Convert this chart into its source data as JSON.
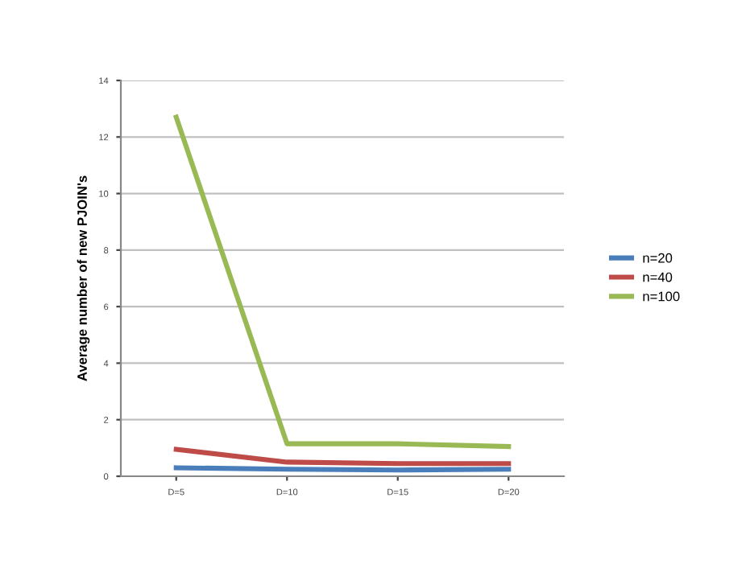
{
  "chart_data": {
    "type": "line",
    "ylabel": "Average number of new PJOIN's",
    "categories": [
      "D=5",
      "D=10",
      "D=15",
      "D=20"
    ],
    "series": [
      {
        "name": "n=20",
        "color": "#4a7ebb",
        "values": [
          0.3,
          0.25,
          0.22,
          0.25
        ]
      },
      {
        "name": "n=40",
        "color": "#be4b48",
        "values": [
          0.95,
          0.5,
          0.45,
          0.45
        ]
      },
      {
        "name": "n=100",
        "color": "#98b954",
        "values": [
          12.7,
          1.15,
          1.15,
          1.05
        ]
      }
    ],
    "ylim": [
      0,
      14
    ],
    "yticks": [
      0,
      2,
      4,
      6,
      8,
      10,
      12,
      14
    ],
    "grid": "y",
    "legend": "right",
    "marker": "none",
    "line_style": "solid"
  }
}
